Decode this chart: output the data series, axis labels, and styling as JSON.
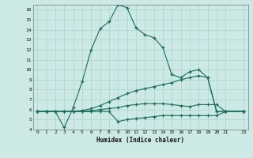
{
  "xlabel": "Humidex (Indice chaleur)",
  "bg_color": "#cce9e5",
  "grid_color": "#aad4cf",
  "line_color": "#1a6b5a",
  "xlim": [
    -0.5,
    23.5
  ],
  "ylim": [
    4,
    16.5
  ],
  "xticks": [
    0,
    1,
    2,
    3,
    4,
    5,
    6,
    7,
    8,
    9,
    10,
    11,
    12,
    13,
    14,
    15,
    16,
    17,
    18,
    19,
    20,
    21,
    23
  ],
  "yticks": [
    4,
    5,
    6,
    7,
    8,
    9,
    10,
    11,
    12,
    13,
    14,
    15,
    16
  ],
  "series1_x": [
    0,
    1,
    2,
    3,
    4,
    5,
    6,
    7,
    8,
    9,
    10,
    11,
    12,
    13,
    14,
    15,
    16,
    17,
    18,
    19,
    20,
    21,
    23
  ],
  "series1_y": [
    5.8,
    5.8,
    5.8,
    4.2,
    6.2,
    8.8,
    12.0,
    14.1,
    14.8,
    16.5,
    16.2,
    14.2,
    13.5,
    13.2,
    12.2,
    9.5,
    9.2,
    9.8,
    10.0,
    9.2,
    5.8,
    5.8,
    5.8
  ],
  "series2_x": [
    0,
    1,
    2,
    3,
    4,
    5,
    6,
    7,
    8,
    9,
    10,
    11,
    12,
    13,
    14,
    15,
    16,
    17,
    18,
    19,
    20,
    21,
    23
  ],
  "series2_y": [
    5.8,
    5.8,
    5.8,
    5.8,
    5.8,
    5.9,
    6.1,
    6.4,
    6.8,
    7.2,
    7.6,
    7.9,
    8.1,
    8.3,
    8.5,
    8.7,
    9.0,
    9.2,
    9.4,
    9.2,
    5.8,
    5.8,
    5.8
  ],
  "series3_x": [
    0,
    1,
    2,
    3,
    4,
    5,
    6,
    7,
    8,
    9,
    10,
    11,
    12,
    13,
    14,
    15,
    16,
    17,
    18,
    19,
    20,
    21,
    23
  ],
  "series3_y": [
    5.8,
    5.8,
    5.8,
    5.8,
    5.8,
    5.8,
    5.9,
    6.0,
    6.1,
    6.2,
    6.4,
    6.5,
    6.6,
    6.6,
    6.6,
    6.5,
    6.4,
    6.3,
    6.5,
    6.5,
    6.5,
    5.8,
    5.8
  ],
  "series4_x": [
    0,
    1,
    2,
    3,
    4,
    5,
    6,
    7,
    8,
    9,
    10,
    11,
    12,
    13,
    14,
    15,
    16,
    17,
    18,
    19,
    20,
    21,
    23
  ],
  "series4_y": [
    5.8,
    5.8,
    5.8,
    5.8,
    5.8,
    5.8,
    5.8,
    5.8,
    5.8,
    4.8,
    5.0,
    5.1,
    5.2,
    5.3,
    5.4,
    5.4,
    5.4,
    5.4,
    5.4,
    5.4,
    5.4,
    5.8,
    5.8
  ]
}
